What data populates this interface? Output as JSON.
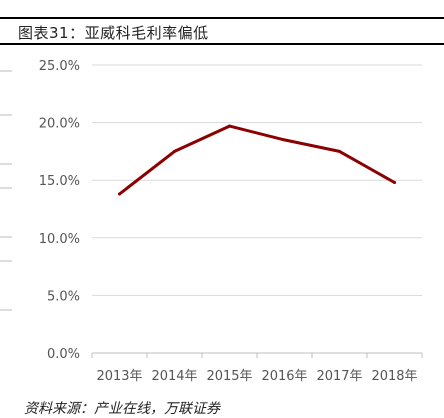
{
  "figure": {
    "title": "图表31：亚威科毛利率偏低",
    "source": "资料来源：产业在线，万联证券"
  },
  "colors": {
    "line": "#8b0000",
    "grid": "#d9d9d9",
    "text": "#555555"
  },
  "chart_data": {
    "type": "line",
    "title": "",
    "xlabel": "",
    "ylabel": "",
    "categories": [
      "2013年",
      "2014年",
      "2015年",
      "2016年",
      "2017年",
      "2018年"
    ],
    "series": [
      {
        "values": [
          13.8,
          17.5,
          19.7,
          18.5,
          17.5,
          14.8
        ]
      }
    ],
    "ylim": [
      0,
      25
    ],
    "yticks": [
      0,
      5,
      10,
      15,
      20,
      25
    ],
    "ytick_labels": [
      "0.0%",
      "5.0%",
      "10.0%",
      "15.0%",
      "20.0%",
      "25.0%"
    ],
    "grid": true,
    "legend": "none"
  }
}
